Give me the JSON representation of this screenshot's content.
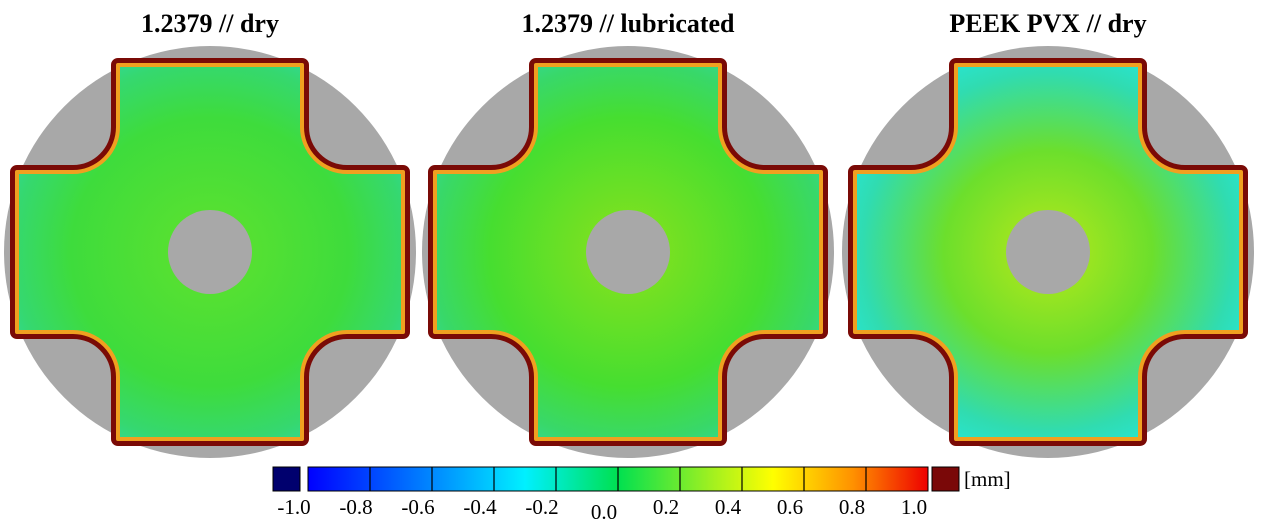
{
  "panels": [
    {
      "title": "1.2379 // dry"
    },
    {
      "title": "1.2379 // lubricated"
    },
    {
      "title": "PEEK PVX // dry"
    }
  ],
  "colorbar": {
    "ticks": [
      "-1.0",
      "-0.8",
      "-0.6",
      "-0.4",
      "-0.2",
      "0.0",
      "0.2",
      "0.4",
      "0.6",
      "0.8",
      "1.0"
    ],
    "unit": "[mm]"
  }
}
